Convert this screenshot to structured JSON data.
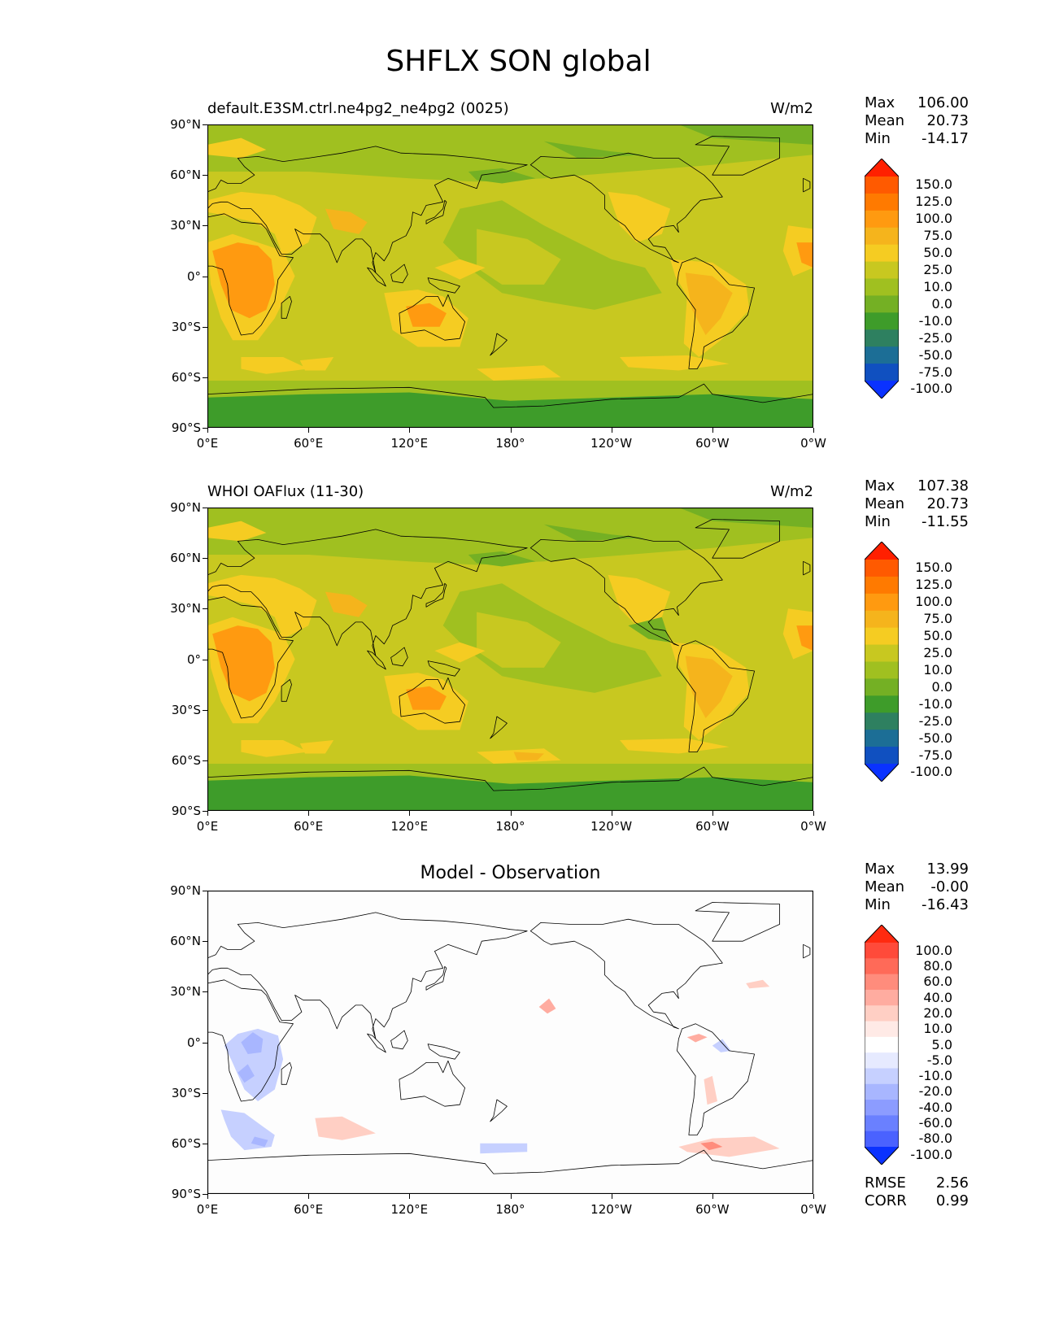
{
  "figure": {
    "title": "SHFLX SON global"
  },
  "chart_data": [
    {
      "type": "heatmap",
      "subtype": "filled-contour-map",
      "title": "default.E3SM.ctrl.ne4pg2_ne4pg2 (0025)",
      "units": "W/m2",
      "x_ticks": [
        "0°E",
        "60°E",
        "120°E",
        "180°",
        "120°W",
        "60°W",
        "0°W"
      ],
      "y_ticks": [
        "90°N",
        "60°N",
        "30°N",
        "0°",
        "30°S",
        "60°S",
        "90°S"
      ],
      "stats": [
        {
          "label": "Max",
          "value": "106.00"
        },
        {
          "label": "Mean",
          "value": "20.73"
        },
        {
          "label": "Min",
          "value": "-14.17"
        }
      ],
      "colorbar": {
        "labels": [
          "150.0",
          "125.0",
          "100.0",
          "75.0",
          "50.0",
          "25.0",
          "10.0",
          "0.0",
          "-10.0",
          "-25.0",
          "-50.0",
          "-75.0",
          "-100.0"
        ],
        "colors": [
          "#ff2000",
          "#ff5a00",
          "#ff7a00",
          "#ff9a10",
          "#f5b41c",
          "#f5cc22",
          "#c8c820",
          "#a0c020",
          "#74b024",
          "#3e9c2a",
          "#2e8060",
          "#1c6e96",
          "#1050c0",
          "#0a32ff"
        ]
      },
      "field_colors": {
        "ocean": "#c8c820",
        "land_warm": "#f5cc22",
        "land_hot": "#ff9a10",
        "polar": "#74b024",
        "antarctic": "#3e9c2a"
      }
    },
    {
      "type": "heatmap",
      "subtype": "filled-contour-map",
      "title": "WHOI OAFlux (11-30)",
      "units": "W/m2",
      "x_ticks": [
        "0°E",
        "60°E",
        "120°E",
        "180°",
        "120°W",
        "60°W",
        "0°W"
      ],
      "y_ticks": [
        "90°N",
        "60°N",
        "30°N",
        "0°",
        "30°S",
        "60°S",
        "90°S"
      ],
      "stats": [
        {
          "label": "Max",
          "value": "107.38"
        },
        {
          "label": "Mean",
          "value": "20.73"
        },
        {
          "label": "Min",
          "value": "-11.55"
        }
      ],
      "colorbar": {
        "labels": [
          "150.0",
          "125.0",
          "100.0",
          "75.0",
          "50.0",
          "25.0",
          "10.0",
          "0.0",
          "-10.0",
          "-25.0",
          "-50.0",
          "-75.0",
          "-100.0"
        ],
        "colors": [
          "#ff2000",
          "#ff5a00",
          "#ff7a00",
          "#ff9a10",
          "#f5b41c",
          "#f5cc22",
          "#c8c820",
          "#a0c020",
          "#74b024",
          "#3e9c2a",
          "#2e8060",
          "#1c6e96",
          "#1050c0",
          "#0a32ff"
        ]
      }
    },
    {
      "type": "heatmap",
      "subtype": "filled-contour-map",
      "title": "Model - Observation",
      "units": "",
      "x_ticks": [
        "0°E",
        "60°E",
        "120°E",
        "180°",
        "120°W",
        "60°W",
        "0°W"
      ],
      "y_ticks": [
        "90°N",
        "60°N",
        "30°N",
        "0°",
        "30°S",
        "60°S",
        "90°S"
      ],
      "stats": [
        {
          "label": "Max",
          "value": "13.99"
        },
        {
          "label": "Mean",
          "value": "-0.00"
        },
        {
          "label": "Min",
          "value": "-16.43"
        }
      ],
      "extra_stats": [
        {
          "label": "RMSE",
          "value": "2.56"
        },
        {
          "label": "CORR",
          "value": "0.99"
        }
      ],
      "colorbar": {
        "labels": [
          "100.0",
          "80.0",
          "60.0",
          "40.0",
          "20.0",
          "10.0",
          "5.0",
          "-5.0",
          "-10.0",
          "-20.0",
          "-40.0",
          "-60.0",
          "-80.0",
          "-100.0"
        ],
        "colors": [
          "#ff2a10",
          "#ff4a3a",
          "#ff6a58",
          "#ff8c7c",
          "#ffaca0",
          "#ffcfc4",
          "#ffeae6",
          "#ffffff",
          "#e6eaff",
          "#c6d0ff",
          "#a8b6ff",
          "#8c9cff",
          "#6a80ff",
          "#4a62ff",
          "#0a32ff"
        ]
      }
    }
  ]
}
